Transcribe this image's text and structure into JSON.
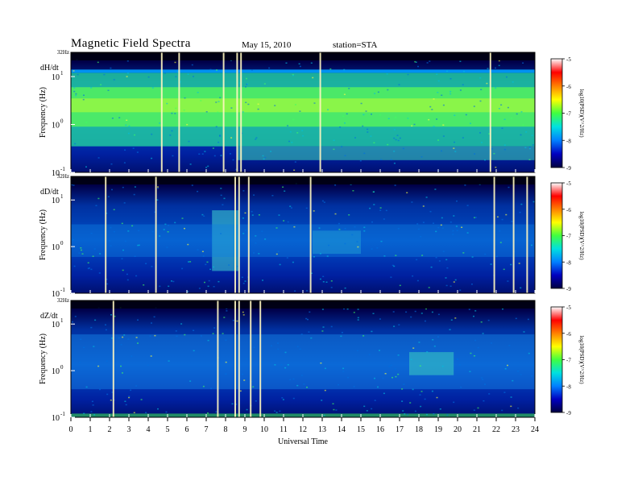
{
  "header": {
    "title": "Magnetic Field Spectra",
    "date": "May 15, 2010",
    "station": "station=STA"
  },
  "chart_data": {
    "type": "heatmap",
    "x": {
      "label": "Universal Time",
      "ticks": [
        "0",
        "1",
        "2",
        "3",
        "4",
        "5",
        "6",
        "7",
        "8",
        "9",
        "10",
        "11",
        "12",
        "13",
        "14",
        "15",
        "16",
        "17",
        "18",
        "19",
        "20",
        "21",
        "22",
        "23",
        "24"
      ],
      "range": [
        0,
        24
      ]
    },
    "y": {
      "label": "Frequency (Hz)",
      "scale": "log",
      "top_label": "32Hz",
      "ticks": [
        {
          "label": "10",
          "exp": "1"
        },
        {
          "label": "10",
          "exp": "0"
        },
        {
          "label": "10",
          "exp": "-1"
        }
      ],
      "range_hz": [
        0.1,
        32
      ]
    },
    "colorbar": {
      "label": "log10(PSD)(V^2/Hz)",
      "ticks": [
        "-5",
        "-6",
        "-7",
        "-8",
        "-9"
      ],
      "range": [
        -9,
        -5
      ],
      "colors": [
        "#000040",
        "#0000c0",
        "#0080ff",
        "#00e0e0",
        "#40ff40",
        "#ffff00",
        "#ff8000",
        "#ff0000",
        "#ffffff"
      ]
    },
    "panels": [
      {
        "name": "dH/dt",
        "vertical_spikes_ut": [
          4.7,
          5.6,
          7.9,
          8.6,
          8.8,
          12.9,
          21.7
        ]
      },
      {
        "name": "dD/dt",
        "vertical_spikes_ut": [
          1.8,
          4.4,
          8.5,
          8.7,
          9.2,
          12.4,
          21.9,
          22.9,
          23.6
        ]
      },
      {
        "name": "dZ/dt",
        "vertical_spikes_ut": [
          2.2,
          7.6,
          8.5,
          8.7,
          9.3,
          9.8
        ]
      }
    ]
  }
}
